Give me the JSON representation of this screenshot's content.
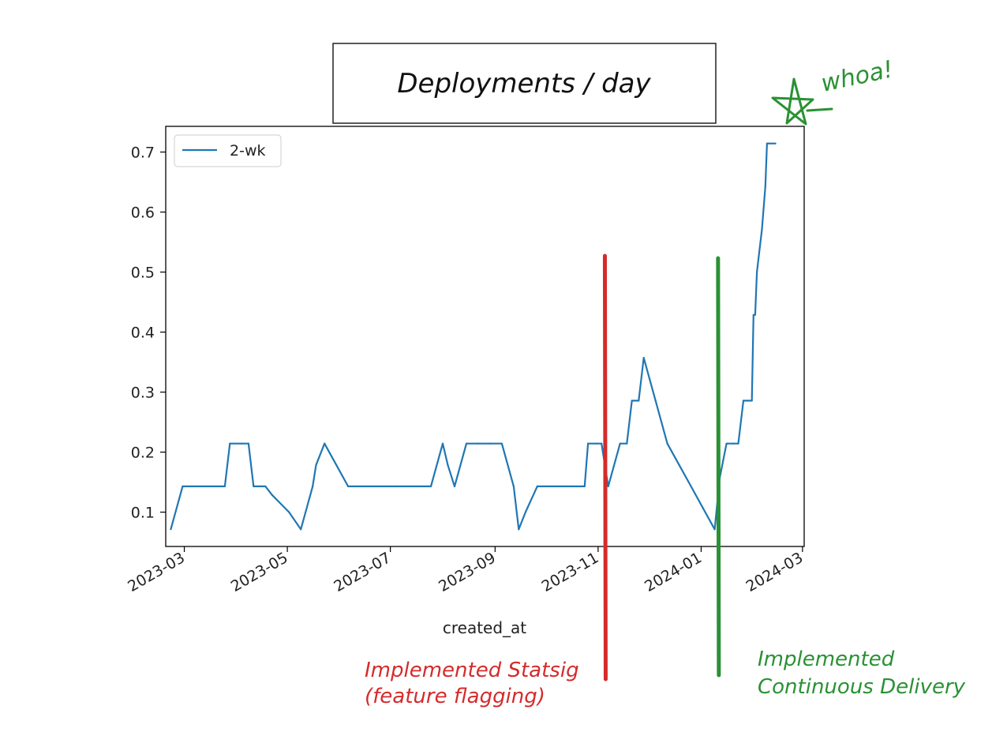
{
  "chart_data": {
    "type": "line",
    "title": "Deployments / day",
    "xlabel": "created_at",
    "ylabel": "",
    "legend": {
      "position": "top-left",
      "entries": [
        "2-wk"
      ]
    },
    "xlim": [
      "2023-02-18",
      "2024-03-02"
    ],
    "ylim": [
      0.0428,
      0.7428
    ],
    "yticks": [
      0.1,
      0.2,
      0.3,
      0.4,
      0.5,
      0.6,
      0.7
    ],
    "ytick_labels": [
      "0.1",
      "0.2",
      "0.3",
      "0.4",
      "0.5",
      "0.6",
      "0.7"
    ],
    "xticks": [
      "2023-03-01",
      "2023-05-01",
      "2023-07-01",
      "2023-09-01",
      "2023-11-01",
      "2024-01-01",
      "2024-03-01"
    ],
    "xtick_labels": [
      "2023-03",
      "2023-05",
      "2023-07",
      "2023-09",
      "2023-11",
      "2024-01",
      "2024-03"
    ],
    "series": [
      {
        "name": "2-wk",
        "color": "#1f77b4",
        "x": [
          "2023-02-21",
          "2023-02-28",
          "2023-03-07",
          "2023-03-14",
          "2023-03-21",
          "2023-03-25",
          "2023-03-28",
          "2023-04-04",
          "2023-04-08",
          "2023-04-11",
          "2023-04-18",
          "2023-04-22",
          "2023-05-02",
          "2023-05-09",
          "2023-05-16",
          "2023-05-18",
          "2023-05-23",
          "2023-05-30",
          "2023-06-06",
          "2023-06-13",
          "2023-06-20",
          "2023-06-27",
          "2023-07-04",
          "2023-07-11",
          "2023-07-18",
          "2023-07-25",
          "2023-08-01",
          "2023-08-04",
          "2023-08-08",
          "2023-08-15",
          "2023-08-22",
          "2023-08-29",
          "2023-09-05",
          "2023-09-12",
          "2023-09-15",
          "2023-09-19",
          "2023-09-26",
          "2023-10-03",
          "2023-10-10",
          "2023-10-17",
          "2023-10-24",
          "2023-10-26",
          "2023-10-31",
          "2023-11-03",
          "2023-11-07",
          "2023-11-14",
          "2023-11-18",
          "2023-11-21",
          "2023-11-25",
          "2023-11-28",
          "2023-12-05",
          "2023-12-12",
          "2023-12-19",
          "2023-12-26",
          "2024-01-02",
          "2024-01-09",
          "2024-01-12",
          "2024-01-16",
          "2024-01-20",
          "2024-01-23",
          "2024-01-26",
          "2024-01-28",
          "2024-01-31",
          "2024-02-01",
          "2024-02-02",
          "2024-02-03",
          "2024-02-06",
          "2024-02-08",
          "2024-02-09",
          "2024-02-10",
          "2024-02-14"
        ],
        "values": [
          0.0714,
          0.1429,
          0.1429,
          0.1429,
          0.1429,
          0.1429,
          0.2143,
          0.2143,
          0.2143,
          0.1429,
          0.1429,
          0.1286,
          0.1,
          0.0714,
          0.1429,
          0.1786,
          0.2143,
          0.1786,
          0.1429,
          0.1429,
          0.1429,
          0.1429,
          0.1429,
          0.1429,
          0.1429,
          0.1429,
          0.2143,
          0.1786,
          0.1429,
          0.2143,
          0.2143,
          0.2143,
          0.2143,
          0.1429,
          0.0714,
          0.1,
          0.1429,
          0.1429,
          0.1429,
          0.1429,
          0.1429,
          0.2143,
          0.2143,
          0.2143,
          0.1429,
          0.2143,
          0.2143,
          0.2857,
          0.2857,
          0.3571,
          0.2857,
          0.2143,
          0.1786,
          0.1429,
          0.1071,
          0.0714,
          0.1571,
          0.2143,
          0.2143,
          0.2143,
          0.2857,
          0.2857,
          0.2857,
          0.4286,
          0.4286,
          0.5,
          0.5714,
          0.6429,
          0.7143,
          0.7143,
          0.7143
        ]
      }
    ],
    "annotations": [
      {
        "text": "whoa!",
        "color": "#2a9134",
        "icon": "star-icon"
      },
      {
        "date": "2023-11-05",
        "color": "#d52b2b",
        "lines": [
          "Implemented Statsig",
          "(feature flagging)"
        ]
      },
      {
        "date": "2024-01-11",
        "color": "#2a9134",
        "lines": [
          "Implemented",
          "Continuous Delivery"
        ]
      }
    ]
  }
}
